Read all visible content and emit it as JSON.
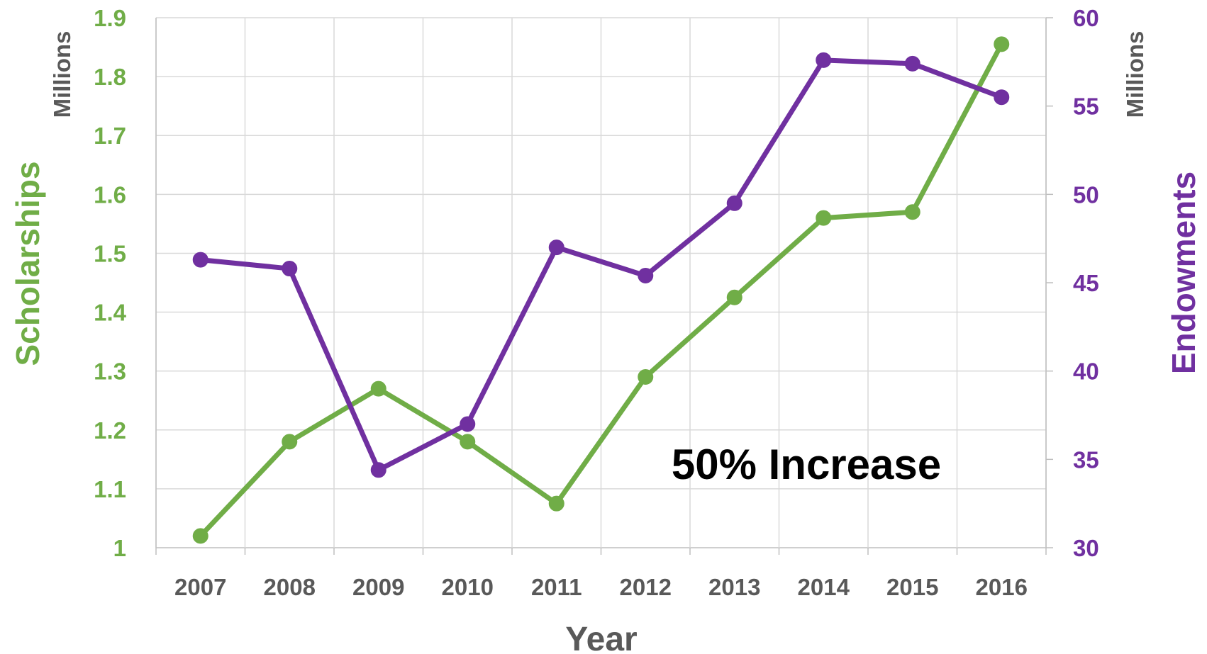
{
  "chart_data": {
    "type": "line",
    "categories": [
      "2007",
      "2008",
      "2009",
      "2010",
      "2011",
      "2012",
      "2013",
      "2014",
      "2015",
      "2016"
    ],
    "xlabel": "Year",
    "grid": true,
    "left_axis": {
      "label": "Scholarships",
      "unit": "Millions",
      "ylim": [
        1,
        1.9
      ],
      "ticks": [
        "1",
        "1.1",
        "1.2",
        "1.3",
        "1.4",
        "1.5",
        "1.6",
        "1.7",
        "1.8",
        "1.9"
      ],
      "color": "#70ad47"
    },
    "right_axis": {
      "label": "Endowments",
      "unit": "Millions",
      "ylim": [
        30,
        60
      ],
      "ticks": [
        "30",
        "35",
        "40",
        "45",
        "50",
        "55",
        "60"
      ],
      "color": "#7030a0"
    },
    "series": [
      {
        "name": "Scholarships",
        "axis": "left",
        "color": "#70ad47",
        "values": [
          1.02,
          1.18,
          1.27,
          1.18,
          1.075,
          1.29,
          1.425,
          1.56,
          1.57,
          1.855
        ]
      },
      {
        "name": "Endowments",
        "axis": "right",
        "color": "#7030a0",
        "values": [
          46.3,
          45.8,
          34.4,
          37.0,
          47.0,
          45.4,
          49.5,
          57.6,
          57.4,
          55.5
        ]
      }
    ],
    "annotation": "50% Increase"
  }
}
